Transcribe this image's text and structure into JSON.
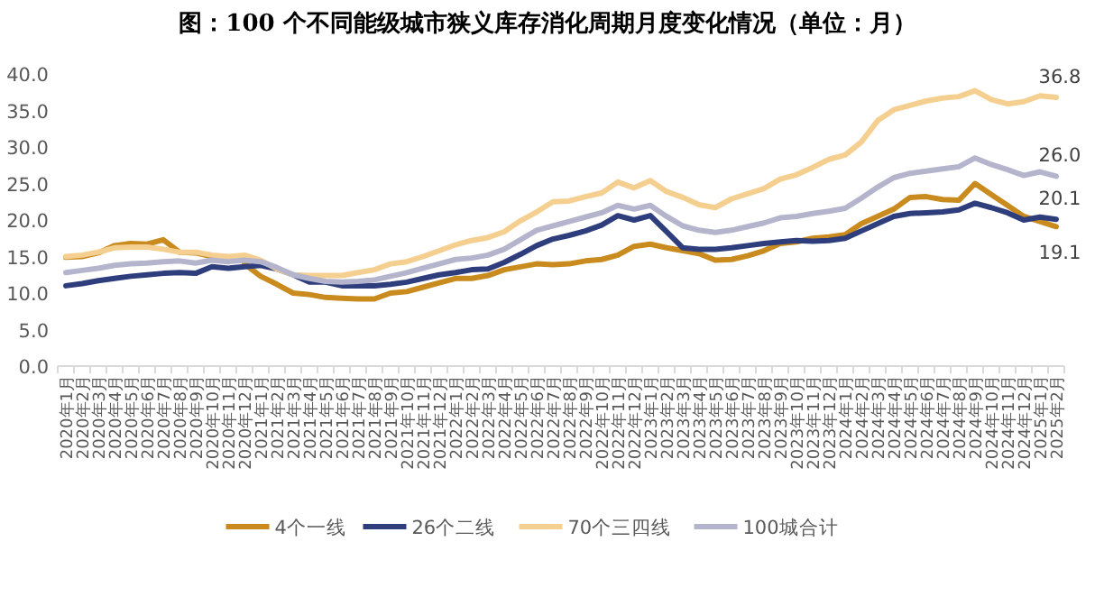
{
  "chart_data": {
    "type": "line",
    "title": "图：100 个不同能级城市狭义库存消化周期月度变化情况（单位：月）",
    "categories": [
      "2020年1月",
      "2020年2月",
      "2020年3月",
      "2020年4月",
      "2020年5月",
      "2020年6月",
      "2020年7月",
      "2020年8月",
      "2020年9月",
      "2020年10月",
      "2020年11月",
      "2020年12月",
      "2021年1月",
      "2021年2月",
      "2021年3月",
      "2021年4月",
      "2021年5月",
      "2021年6月",
      "2021年7月",
      "2021年8月",
      "2021年9月",
      "2021年10月",
      "2021年11月",
      "2021年12月",
      "2022年1月",
      "2022年2月",
      "2022年3月",
      "2022年4月",
      "2022年5月",
      "2022年6月",
      "2022年7月",
      "2022年8月",
      "2022年9月",
      "2022年10月",
      "2022年11月",
      "2022年12月",
      "2023年1月",
      "2023年2月",
      "2023年3月",
      "2023年4月",
      "2023年5月",
      "2023年6月",
      "2023年7月",
      "2023年8月",
      "2023年9月",
      "2023年10月",
      "2023年11月",
      "2023年12月",
      "2024年1月",
      "2024年2月",
      "2024年3月",
      "2024年4月",
      "2024年5月",
      "2024年6月",
      "2024年7月",
      "2024年8月",
      "2024年9月",
      "2024年10月",
      "2024年11月",
      "2024年12月",
      "2025年1月",
      "2025年2月"
    ],
    "ylim": [
      0,
      40
    ],
    "yticks": [
      {
        "value": 0,
        "label": "0.0"
      },
      {
        "value": 5,
        "label": "5.0"
      },
      {
        "value": 10,
        "label": "10.0"
      },
      {
        "value": 15,
        "label": "15.0"
      },
      {
        "value": 20,
        "label": "20.0"
      },
      {
        "value": 25,
        "label": "25.0"
      },
      {
        "value": 30,
        "label": "30.0"
      },
      {
        "value": 35,
        "label": "35.0"
      },
      {
        "value": 40,
        "label": "40.0"
      }
    ],
    "legend": "bottom",
    "marker": "none",
    "line_style": "solid",
    "grid": false,
    "series": [
      {
        "name": "4个一线",
        "color": "#c98a1e",
        "values": [
          14.9,
          15.0,
          15.5,
          16.5,
          16.8,
          16.7,
          17.3,
          15.6,
          15.5,
          15.0,
          null,
          14.0,
          12.3,
          11.2,
          10.0,
          9.8,
          9.4,
          9.3,
          9.2,
          9.2,
          10.0,
          10.2,
          10.8,
          11.4,
          12.0,
          12.0,
          12.4,
          13.2,
          13.6,
          14.0,
          13.9,
          14.0,
          14.4,
          14.6,
          15.2,
          16.4,
          16.7,
          16.2,
          15.8,
          15.4,
          14.5,
          14.6,
          15.1,
          15.8,
          16.8,
          17.0,
          17.5,
          17.7,
          18.0,
          19.5,
          20.5,
          21.5,
          23.1,
          23.2,
          22.8,
          22.7,
          25.0,
          23.5,
          22.0,
          20.5,
          19.8,
          19.1
        ],
        "value_labels": [
          null,
          null,
          null,
          null,
          null,
          null,
          null,
          null,
          null,
          null,
          null,
          null,
          null,
          null,
          null,
          null,
          null,
          null,
          null,
          null,
          null,
          null,
          null,
          null,
          null,
          null,
          null,
          null,
          null,
          null,
          null,
          null,
          null,
          null,
          null,
          null,
          null,
          null,
          null,
          null,
          null,
          null,
          null,
          null,
          null,
          null,
          null,
          null,
          null,
          null,
          null,
          null,
          null,
          null,
          null,
          null,
          null,
          null,
          null,
          null,
          null,
          "19.1"
        ]
      },
      {
        "name": "26个二线",
        "color": "#2e3d7c",
        "values": [
          11.0,
          11.3,
          11.7,
          12.0,
          12.3,
          12.5,
          12.7,
          12.8,
          12.7,
          13.6,
          13.4,
          13.6,
          13.8,
          13.3,
          12.5,
          11.5,
          11.5,
          11.0,
          11.0,
          11.0,
          11.2,
          11.5,
          12.0,
          12.5,
          12.8,
          13.2,
          13.3,
          14.2,
          15.3,
          16.5,
          17.4,
          17.9,
          18.5,
          19.3,
          20.6,
          20.0,
          20.6,
          18.4,
          16.2,
          16.0,
          16.0,
          16.2,
          16.5,
          16.8,
          17.0,
          17.2,
          17.1,
          17.2,
          17.5,
          18.5,
          19.5,
          20.5,
          20.9,
          21.0,
          21.1,
          21.4,
          22.3,
          21.7,
          21.0,
          20.0,
          20.4,
          20.1
        ],
        "value_labels": [
          null,
          null,
          null,
          null,
          null,
          null,
          null,
          null,
          null,
          null,
          null,
          null,
          null,
          null,
          null,
          null,
          null,
          null,
          null,
          null,
          null,
          null,
          null,
          null,
          null,
          null,
          null,
          null,
          null,
          null,
          null,
          null,
          null,
          null,
          null,
          null,
          null,
          null,
          null,
          null,
          null,
          null,
          null,
          null,
          null,
          null,
          null,
          null,
          null,
          null,
          null,
          null,
          null,
          null,
          null,
          null,
          null,
          null,
          null,
          null,
          null,
          "20.1"
        ]
      },
      {
        "name": "70个三四线",
        "color": "#f5cf8f",
        "values": [
          15.0,
          15.2,
          15.6,
          16.2,
          16.3,
          16.3,
          16.0,
          15.6,
          15.6,
          15.2,
          15.0,
          15.2,
          14.5,
          13.3,
          12.5,
          12.4,
          12.4,
          12.4,
          12.8,
          13.2,
          14.0,
          14.3,
          15.0,
          15.8,
          16.6,
          17.2,
          17.6,
          18.4,
          19.9,
          21.1,
          22.5,
          22.6,
          23.2,
          23.7,
          25.2,
          24.4,
          25.4,
          23.9,
          23.1,
          22.1,
          21.7,
          22.9,
          23.6,
          24.3,
          25.6,
          26.2,
          27.2,
          28.3,
          28.9,
          30.7,
          33.6,
          35.1,
          35.7,
          36.3,
          36.7,
          36.9,
          37.7,
          36.5,
          35.9,
          36.2,
          37.0,
          36.8
        ],
        "value_labels": [
          null,
          null,
          null,
          null,
          null,
          null,
          null,
          null,
          null,
          null,
          null,
          null,
          null,
          null,
          null,
          null,
          null,
          null,
          null,
          null,
          null,
          null,
          null,
          null,
          null,
          null,
          null,
          null,
          null,
          null,
          null,
          null,
          null,
          null,
          null,
          null,
          null,
          null,
          null,
          null,
          null,
          null,
          null,
          null,
          null,
          null,
          null,
          null,
          null,
          null,
          null,
          null,
          null,
          null,
          null,
          null,
          null,
          null,
          null,
          null,
          null,
          "36.8"
        ]
      },
      {
        "name": "100城合计",
        "color": "#b4b5cd",
        "values": [
          12.8,
          13.1,
          13.4,
          13.8,
          14.0,
          14.1,
          14.3,
          14.4,
          14.1,
          14.5,
          14.3,
          14.5,
          14.3,
          13.5,
          12.5,
          12.0,
          11.6,
          11.5,
          11.6,
          11.8,
          12.3,
          12.8,
          13.4,
          14.0,
          14.6,
          14.8,
          15.2,
          16.0,
          17.3,
          18.6,
          19.2,
          19.8,
          20.4,
          21.0,
          22.0,
          21.5,
          22.0,
          20.5,
          19.2,
          18.6,
          18.3,
          18.6,
          19.1,
          19.6,
          20.3,
          20.5,
          20.9,
          21.2,
          21.6,
          23.0,
          24.5,
          25.8,
          26.4,
          26.7,
          27.0,
          27.3,
          28.5,
          27.6,
          26.9,
          26.1,
          26.6,
          26.0
        ],
        "value_labels": [
          null,
          null,
          null,
          null,
          null,
          null,
          null,
          null,
          null,
          null,
          null,
          null,
          null,
          null,
          null,
          null,
          null,
          null,
          null,
          null,
          null,
          null,
          null,
          null,
          null,
          null,
          null,
          null,
          null,
          null,
          null,
          null,
          null,
          null,
          null,
          null,
          null,
          null,
          null,
          null,
          null,
          null,
          null,
          null,
          null,
          null,
          null,
          null,
          null,
          null,
          null,
          null,
          null,
          null,
          null,
          null,
          null,
          null,
          null,
          null,
          null,
          "26.0"
        ]
      }
    ]
  }
}
